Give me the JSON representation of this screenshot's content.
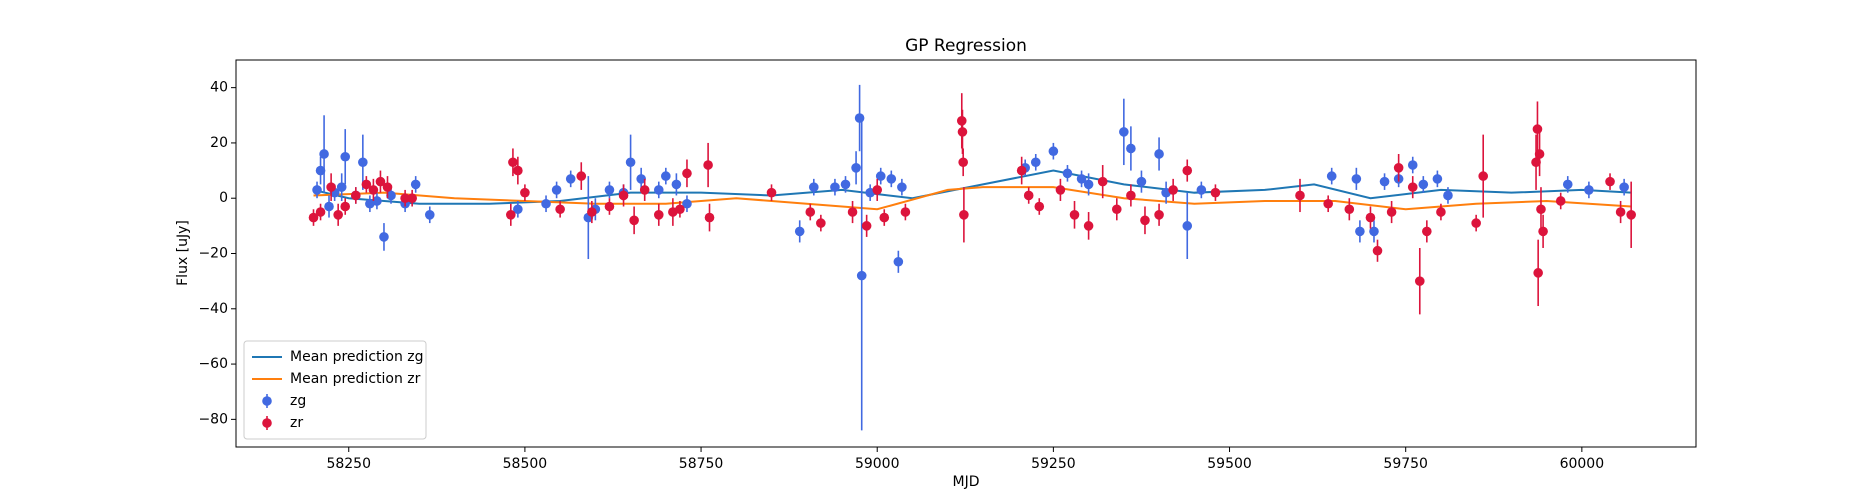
{
  "chart_data": {
    "type": "line",
    "title": "GP Regression",
    "xlabel": "MJD",
    "ylabel": "Flux [uJy]",
    "xlim": [
      58090,
      60162
    ],
    "ylim": [
      -90,
      50
    ],
    "xticks": [
      58250,
      58500,
      58750,
      59000,
      59250,
      59500,
      59750,
      60000
    ],
    "yticks": [
      {
        "value": -80,
        "label": "−80"
      },
      {
        "value": -60,
        "label": "−60"
      },
      {
        "value": -40,
        "label": "−40"
      },
      {
        "value": -20,
        "label": "−20"
      },
      0,
      20,
      40
    ],
    "legend": "lower left",
    "series": [
      {
        "name": "Mean prediction zg",
        "kind": "line",
        "color": "#1f77b4",
        "x": [
          58200,
          58250,
          58350,
          58450,
          58550,
          58650,
          58750,
          58850,
          58950,
          59050,
          59150,
          59250,
          59350,
          59450,
          59550,
          59620,
          59700,
          59800,
          59900,
          60000,
          60070
        ],
        "values": [
          3,
          0,
          -2,
          -2,
          -1,
          2,
          2,
          1,
          3,
          0,
          5,
          10,
          5,
          2,
          3,
          5,
          0,
          3,
          2,
          3,
          2
        ]
      },
      {
        "name": "Mean prediction zr",
        "kind": "line",
        "color": "#ff7f0e",
        "x": [
          58200,
          58300,
          58400,
          58500,
          58600,
          58700,
          58800,
          58900,
          59000,
          59100,
          59150,
          59250,
          59350,
          59450,
          59550,
          59650,
          59750,
          59850,
          59950,
          60070
        ],
        "values": [
          1,
          2,
          0,
          -1,
          -2,
          -2,
          0,
          -2,
          -4,
          3,
          4,
          4,
          0,
          -2,
          -1,
          -1,
          -4,
          -2,
          -1,
          -3
        ]
      },
      {
        "name": "zg",
        "kind": "errorbar",
        "color": "#4169e1",
        "x": [
          58205,
          58210,
          58215,
          58222,
          58230,
          58240,
          58245,
          58260,
          58270,
          58280,
          58290,
          58300,
          58310,
          58330,
          58345,
          58365,
          58490,
          58530,
          58545,
          58565,
          58590,
          58600,
          58620,
          58640,
          58650,
          58665,
          58690,
          58700,
          58715,
          58730,
          58890,
          58910,
          58940,
          58955,
          58970,
          58975,
          58978,
          58990,
          59005,
          59020,
          59030,
          59035,
          59210,
          59225,
          59250,
          59270,
          59290,
          59300,
          59350,
          59360,
          59375,
          59400,
          59410,
          59440,
          59460,
          59645,
          59680,
          59685,
          59705,
          59720,
          59740,
          59760,
          59775,
          59795,
          59810,
          59980,
          60010,
          60060
        ],
        "values": [
          3,
          10,
          16,
          -3,
          2,
          4,
          15,
          1,
          13,
          -2,
          -1,
          -14,
          1,
          -2,
          5,
          -6,
          -4,
          -2,
          3,
          7,
          -7,
          -4,
          3,
          2,
          13,
          7,
          3,
          8,
          5,
          -2,
          -12,
          4,
          4,
          5,
          11,
          29,
          -28,
          2,
          8,
          7,
          -23,
          4,
          11,
          13,
          17,
          9,
          7,
          5,
          24,
          18,
          6,
          16,
          2,
          -10,
          3,
          8,
          7,
          -12,
          -12,
          6,
          7,
          12,
          5,
          7,
          1,
          5,
          3,
          4
        ],
        "errors": [
          3,
          5,
          14,
          4,
          3,
          5,
          10,
          3,
          10,
          3,
          3,
          5,
          3,
          3,
          3,
          3,
          3,
          3,
          3,
          3,
          15,
          4,
          3,
          3,
          10,
          4,
          3,
          3,
          4,
          3,
          4,
          3,
          3,
          3,
          6,
          12,
          56,
          3,
          3,
          3,
          4,
          3,
          3,
          3,
          3,
          3,
          3,
          4,
          12,
          8,
          4,
          6,
          4,
          12,
          3,
          3,
          4,
          4,
          4,
          3,
          3,
          3,
          3,
          3,
          3,
          3,
          3,
          3
        ]
      },
      {
        "name": "zr",
        "kind": "errorbar",
        "color": "#dc143c",
        "x": [
          58200,
          58210,
          58225,
          58235,
          58245,
          58260,
          58275,
          58285,
          58295,
          58305,
          58330,
          58340,
          58480,
          58483,
          58490,
          58500,
          58550,
          58580,
          58595,
          58620,
          58640,
          58655,
          58670,
          58690,
          58710,
          58720,
          58730,
          58760,
          58762,
          58850,
          58905,
          58920,
          58965,
          58985,
          59000,
          59010,
          59040,
          59120,
          59121,
          59122,
          59123,
          59205,
          59215,
          59230,
          59260,
          59280,
          59300,
          59320,
          59340,
          59360,
          59380,
          59400,
          59420,
          59440,
          59480,
          59600,
          59640,
          59670,
          59700,
          59710,
          59730,
          59740,
          59760,
          59770,
          59780,
          59800,
          59850,
          59860,
          59935,
          59937,
          59938,
          59940,
          59942,
          59945,
          59970,
          60040,
          60055,
          60070
        ],
        "values": [
          -7,
          -5,
          4,
          -6,
          -3,
          1,
          5,
          3,
          6,
          4,
          0,
          0,
          -6,
          13,
          10,
          2,
          -4,
          8,
          -5,
          -3,
          1,
          -8,
          3,
          -6,
          -5,
          -4,
          9,
          12,
          -7,
          2,
          -5,
          -9,
          -5,
          -10,
          3,
          -7,
          -5,
          28,
          24,
          13,
          -6,
          10,
          1,
          -3,
          3,
          -6,
          -10,
          6,
          -4,
          1,
          -8,
          -6,
          3,
          10,
          2,
          1,
          -2,
          -4,
          -7,
          -19,
          -5,
          11,
          4,
          -30,
          -12,
          -5,
          -9,
          8,
          13,
          25,
          -27,
          16,
          -4,
          -12,
          -1,
          6,
          -5,
          -6
        ],
        "errors": [
          3,
          3,
          5,
          4,
          3,
          3,
          3,
          4,
          4,
          4,
          3,
          3,
          4,
          5,
          5,
          3,
          3,
          5,
          4,
          3,
          4,
          5,
          4,
          4,
          5,
          3,
          5,
          8,
          5,
          3,
          3,
          3,
          4,
          4,
          4,
          3,
          3,
          10,
          8,
          5,
          10,
          5,
          3,
          3,
          4,
          5,
          5,
          6,
          4,
          4,
          5,
          4,
          4,
          4,
          3,
          6,
          3,
          4,
          4,
          4,
          4,
          5,
          4,
          12,
          4,
          3,
          3,
          15,
          10,
          10,
          12,
          8,
          8,
          6,
          3,
          3,
          4,
          12
        ]
      }
    ]
  }
}
